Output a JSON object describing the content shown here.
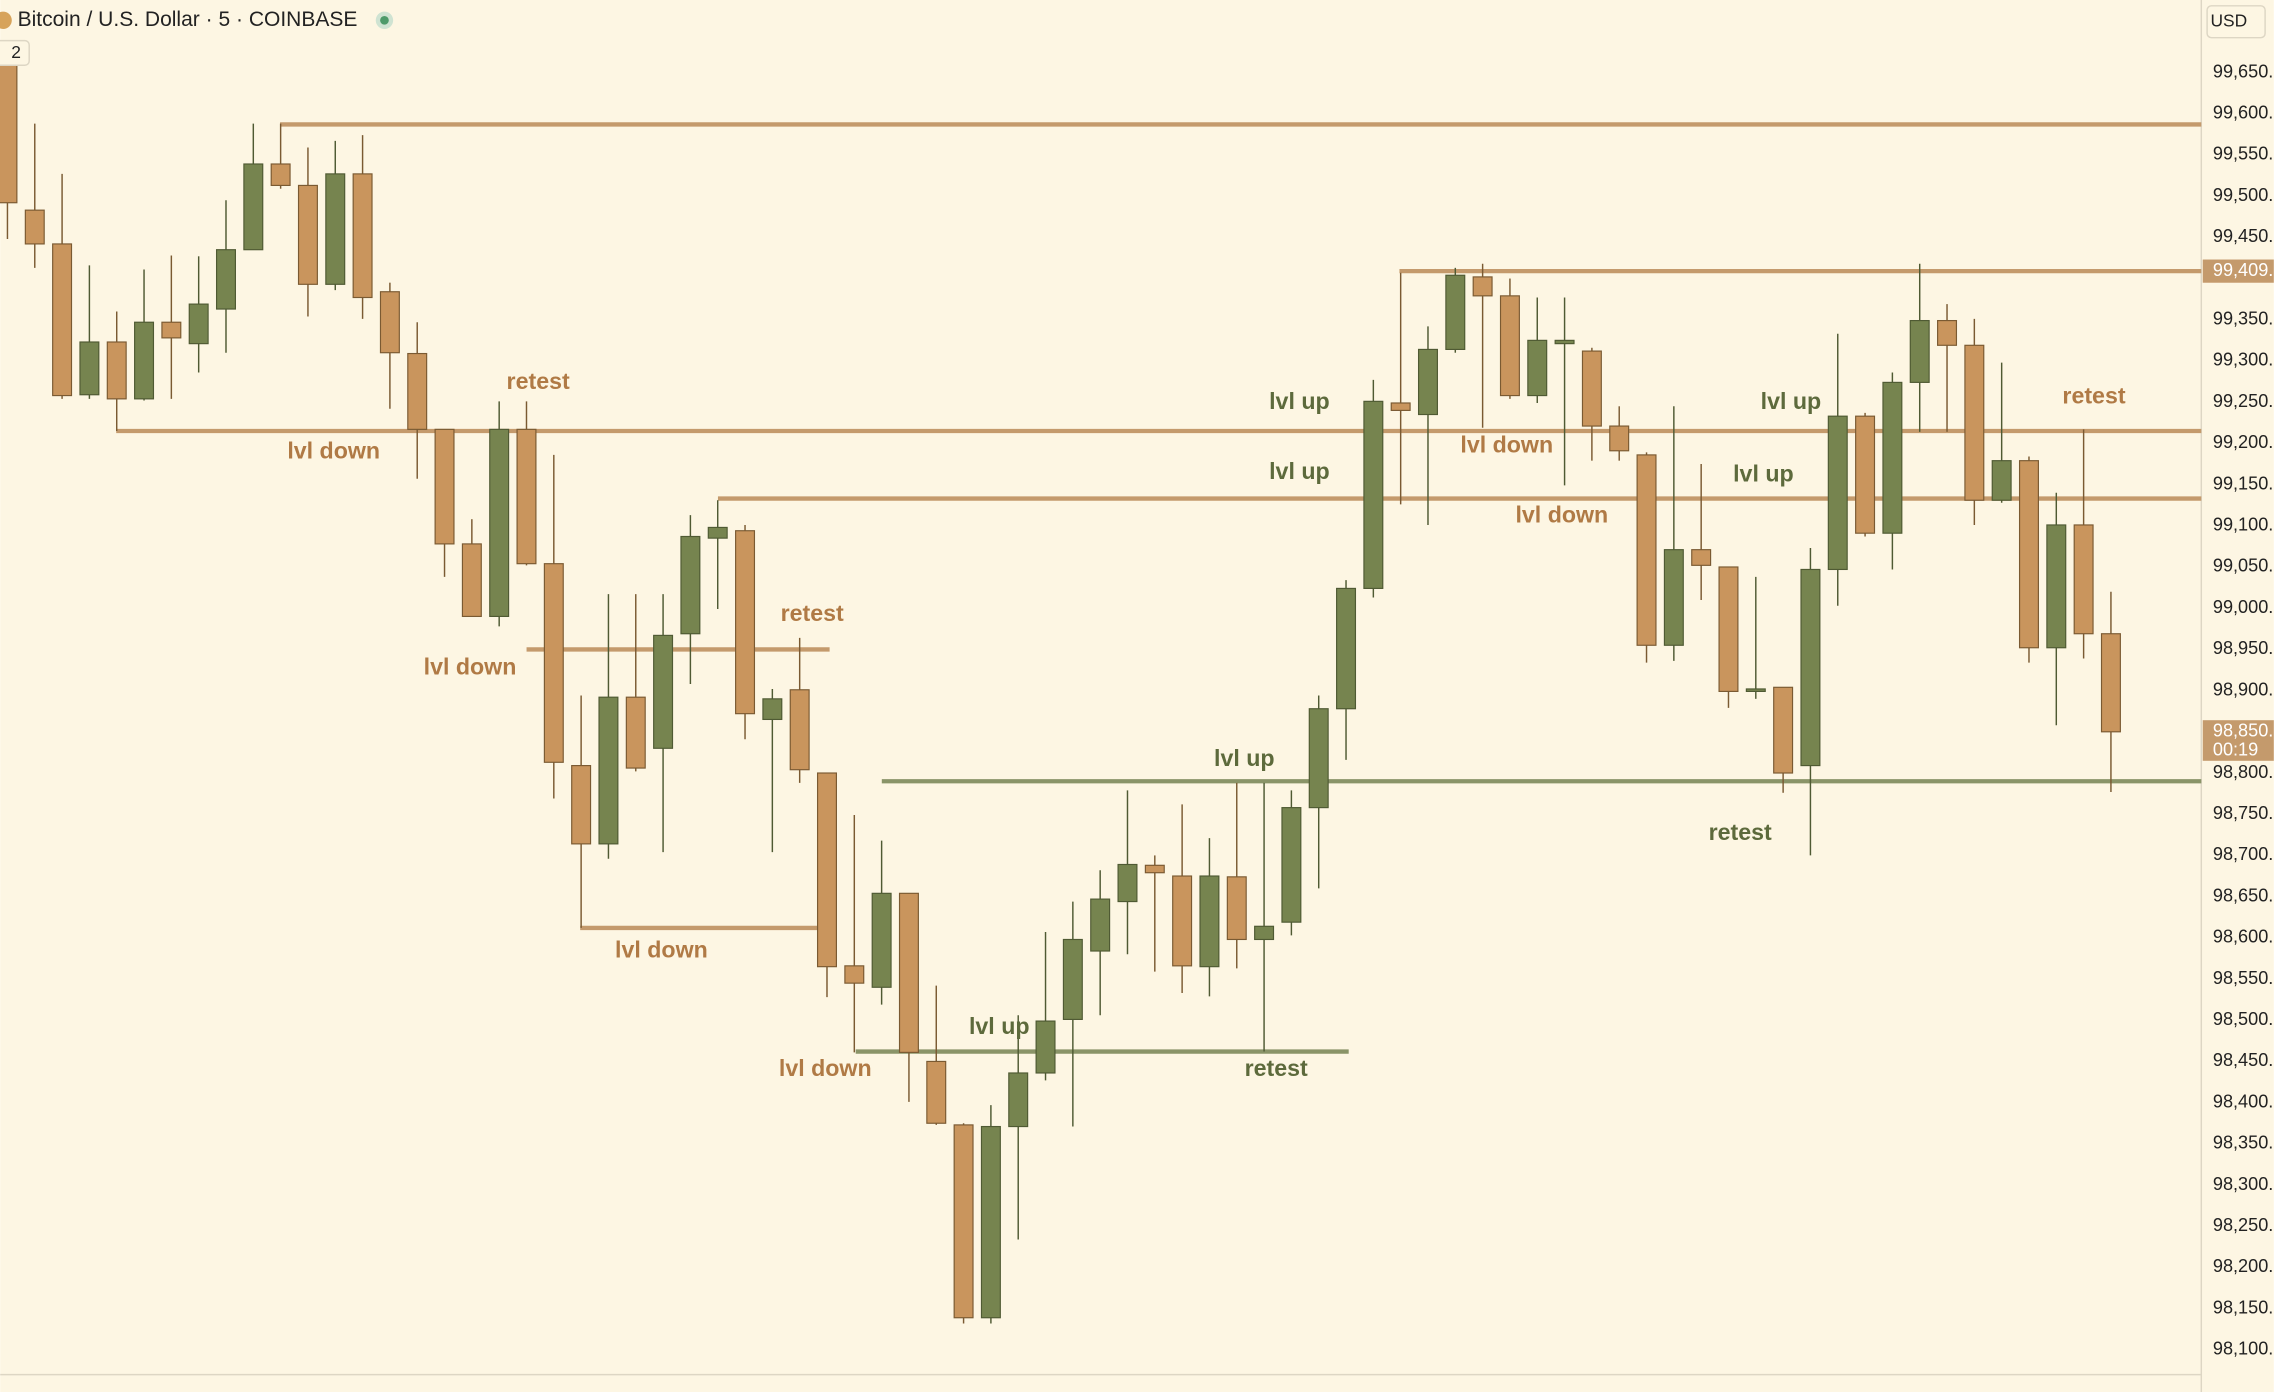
{
  "chart_data": {
    "type": "candlestick",
    "title": "Bitcoin / U.S. Dollar · 5 · COINBASE",
    "indicator_count": "2",
    "currency": "USD",
    "up_color": "#76844f",
    "down_color": "#c9955d",
    "background": "#fdf6e3",
    "ylim": [
      98070,
      99738
    ],
    "yticks": [
      {
        "value": 99650,
        "label": "99,650."
      },
      {
        "value": 99600,
        "label": "99,600."
      },
      {
        "value": 99550,
        "label": "99,550."
      },
      {
        "value": 99500,
        "label": "99,500."
      },
      {
        "value": 99450,
        "label": "99,450."
      },
      {
        "value": 99350,
        "label": "99,350."
      },
      {
        "value": 99300,
        "label": "99,300."
      },
      {
        "value": 99250,
        "label": "99,250."
      },
      {
        "value": 99200,
        "label": "99,200."
      },
      {
        "value": 99150,
        "label": "99,150."
      },
      {
        "value": 99100,
        "label": "99,100."
      },
      {
        "value": 99050,
        "label": "99,050."
      },
      {
        "value": 99000,
        "label": "99,000."
      },
      {
        "value": 98950,
        "label": "98,950."
      },
      {
        "value": 98900,
        "label": "98,900."
      },
      {
        "value": 98800,
        "label": "98,800."
      },
      {
        "value": 98750,
        "label": "98,750."
      },
      {
        "value": 98700,
        "label": "98,700."
      },
      {
        "value": 98650,
        "label": "98,650."
      },
      {
        "value": 98600,
        "label": "98,600."
      },
      {
        "value": 98550,
        "label": "98,550."
      },
      {
        "value": 98500,
        "label": "98,500."
      },
      {
        "value": 98450,
        "label": "98,450."
      },
      {
        "value": 98400,
        "label": "98,400."
      },
      {
        "value": 98350,
        "label": "98,350."
      },
      {
        "value": 98300,
        "label": "98,300."
      },
      {
        "value": 98250,
        "label": "98,250."
      },
      {
        "value": 98200,
        "label": "98,200."
      },
      {
        "value": 98150,
        "label": "98,150."
      },
      {
        "value": 98100,
        "label": "98,100."
      }
    ],
    "open": [
      99659,
      99483,
      99442,
      99259,
      99323,
      99254,
      99347,
      99321,
      99363,
      99435,
      99539,
      99513,
      99393,
      99527,
      99384,
      99309,
      99217,
      99078,
      98990,
      99217,
      99054,
      98809,
      98714,
      98892,
      98830,
      98969,
      99085,
      99094,
      98865,
      98901,
      98800,
      98566,
      98540,
      98654,
      98450,
      98373,
      98139,
      98371,
      98436,
      98501,
      98584,
      98644,
      98688,
      98675,
      98565,
      98674,
      98598,
      98619,
      98758,
      98878,
      99024,
      99249,
      99235,
      99314,
      99402,
      99379,
      99258,
      99321,
      99312,
      99221,
      99186,
      98955,
      99071,
      99050,
      98899,
      98904,
      98809,
      99047,
      99233,
      99091,
      99274,
      99349,
      99319,
      99131,
      99179,
      98952,
      99101,
      98969
    ],
    "high": [
      99668,
      99588,
      99527,
      99416,
      99360,
      99411,
      99428,
      99427,
      99495,
      99588,
      99588,
      99559,
      99567,
      99574,
      99395,
      99347,
      99217,
      99108,
      99251,
      99251,
      99186,
      98894,
      99017,
      99017,
      99017,
      99113,
      99131,
      99101,
      98902,
      98964,
      98800,
      98749,
      98718,
      98654,
      98542,
      98375,
      98397,
      98506,
      98607,
      98644,
      98682,
      98779,
      98700,
      98762,
      98721,
      98788,
      98788,
      98779,
      98894,
      99034,
      99277,
      99407,
      99342,
      99413,
      99418,
      99400,
      99377,
      99377,
      99316,
      99245,
      99189,
      99245,
      99175,
      99050,
      99038,
      98904,
      99073,
      99333,
      99237,
      99286,
      99418,
      99369,
      99351,
      99298,
      99184,
      99140,
      99217,
      99020
    ],
    "low": [
      99448,
      99413,
      99254,
      99254,
      99215,
      99252,
      99254,
      99286,
      99310,
      99435,
      99509,
      99354,
      99386,
      99351,
      99242,
      99157,
      99038,
      98990,
      98978,
      99052,
      98769,
      98612,
      98696,
      98802,
      98704,
      98908,
      98999,
      98841,
      98704,
      98788,
      98528,
      98461,
      98519,
      98401,
      98373,
      98132,
      98132,
      98234,
      98427,
      98371,
      98506,
      98580,
      98559,
      98533,
      98529,
      98563,
      98462,
      98603,
      98660,
      98816,
      99013,
      99126,
      99101,
      99310,
      99219,
      99254,
      99249,
      99149,
      99179,
      99179,
      98934,
      98936,
      99010,
      98879,
      98890,
      98776,
      98700,
      99003,
      99087,
      99047,
      99214,
      99214,
      99101,
      99128,
      98934,
      98858,
      98939,
      98777
    ],
    "close": [
      99492,
      99442,
      99258,
      99323,
      99254,
      99347,
      99328,
      99369,
      99435,
      99539,
      99513,
      99393,
      99527,
      99377,
      99310,
      99217,
      99078,
      98990,
      99217,
      99054,
      98813,
      98714,
      98892,
      98806,
      98967,
      99087,
      99098,
      98872,
      98890,
      98804,
      98565,
      98545,
      98654,
      98461,
      98375,
      98139,
      98371,
      98436,
      98499,
      98598,
      98647,
      98689,
      98679,
      98566,
      98675,
      98598,
      98614,
      98758,
      98878,
      99024,
      99251,
      99240,
      99314,
      99404,
      99379,
      99258,
      99325,
      99325,
      99221,
      99191,
      98955,
      99071,
      99052,
      98899,
      98902,
      98800,
      99047,
      99233,
      99091,
      99274,
      99349,
      99319,
      99131,
      99179,
      98952,
      99101,
      98969,
      98850
    ],
    "levels": [
      {
        "value": 99587,
        "color": "#c49a6c"
      },
      {
        "value": 99409,
        "color": "#c49a6c"
      },
      {
        "value": 99215,
        "color": "#c49a6c"
      },
      {
        "value": 99133,
        "color": "#c49a6c"
      },
      {
        "value": 98950,
        "color": "#c49a6c"
      },
      {
        "value": 98612,
        "color": "#c49a6c"
      },
      {
        "value": 98790,
        "color": "#8a9468"
      },
      {
        "value": 98462,
        "color": "#8a9468"
      }
    ],
    "price_markers": [
      {
        "value": 99409,
        "label": "99,409."
      },
      {
        "value": 98850,
        "label": "98,850.",
        "countdown": "00:19"
      }
    ],
    "annotations": [
      {
        "text": "retest",
        "color": "#b07a45"
      },
      {
        "text": "lvl down",
        "color": "#b07a45"
      },
      {
        "text": "lvl down",
        "color": "#b07a45"
      },
      {
        "text": "retest",
        "color": "#b07a45"
      },
      {
        "text": "lvl down",
        "color": "#b07a45"
      },
      {
        "text": "lvl down",
        "color": "#b07a45"
      },
      {
        "text": "lvl up",
        "color": "#5d6a3c"
      },
      {
        "text": "retest",
        "color": "#5d6a3c"
      },
      {
        "text": "lvl up",
        "color": "#5d6a3c"
      },
      {
        "text": "lvl up",
        "color": "#5d6a3c"
      },
      {
        "text": "lvl up",
        "color": "#5d6a3c"
      },
      {
        "text": "lvl down",
        "color": "#b07a45"
      },
      {
        "text": "lvl down",
        "color": "#b07a45"
      },
      {
        "text": "lvl up",
        "color": "#5d6a3c"
      },
      {
        "text": "lvl up",
        "color": "#5d6a3c"
      },
      {
        "text": "retest",
        "color": "#5d6a3c"
      },
      {
        "text": "retest",
        "color": "#b07a45"
      }
    ]
  }
}
